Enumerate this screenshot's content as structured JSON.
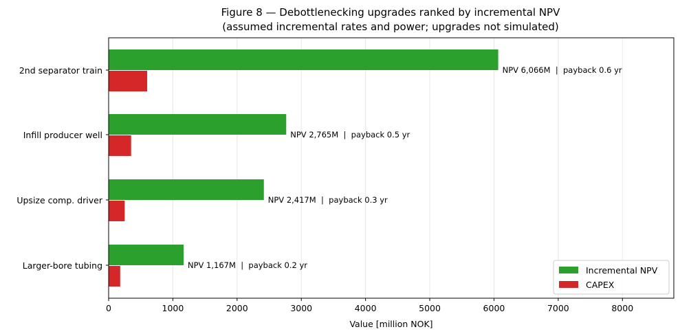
{
  "chart_data": {
    "type": "bar",
    "orientation": "horizontal",
    "title": "Figure 8 — Debottlenecking upgrades ranked by incremental NPV",
    "subtitle": "(assumed incremental rates and power; upgrades not simulated)",
    "xlabel": "Value [million NOK]",
    "ylabel": "",
    "xlim": [
      0,
      8800
    ],
    "xticks": [
      0,
      1000,
      2000,
      3000,
      4000,
      5000,
      6000,
      7000,
      8000
    ],
    "grid": "vertical",
    "legend_position": "bottom-right",
    "categories": [
      "2nd separator train",
      "Infill producer well",
      "Upsize comp. driver",
      "Larger-bore tubing"
    ],
    "series": [
      {
        "name": "Incremental NPV",
        "color": "#2ca02c",
        "values": [
          6066,
          2765,
          2417,
          1167
        ]
      },
      {
        "name": "CAPEX",
        "color": "#d62728",
        "values": [
          600,
          350,
          250,
          180
        ]
      }
    ],
    "data_labels": [
      "NPV 6,066M  |  payback 0.6 yr",
      "NPV 2,765M  |  payback 0.5 yr",
      "NPV 2,417M  |  payback 0.3 yr",
      "NPV 1,167M  |  payback 0.2 yr"
    ]
  }
}
